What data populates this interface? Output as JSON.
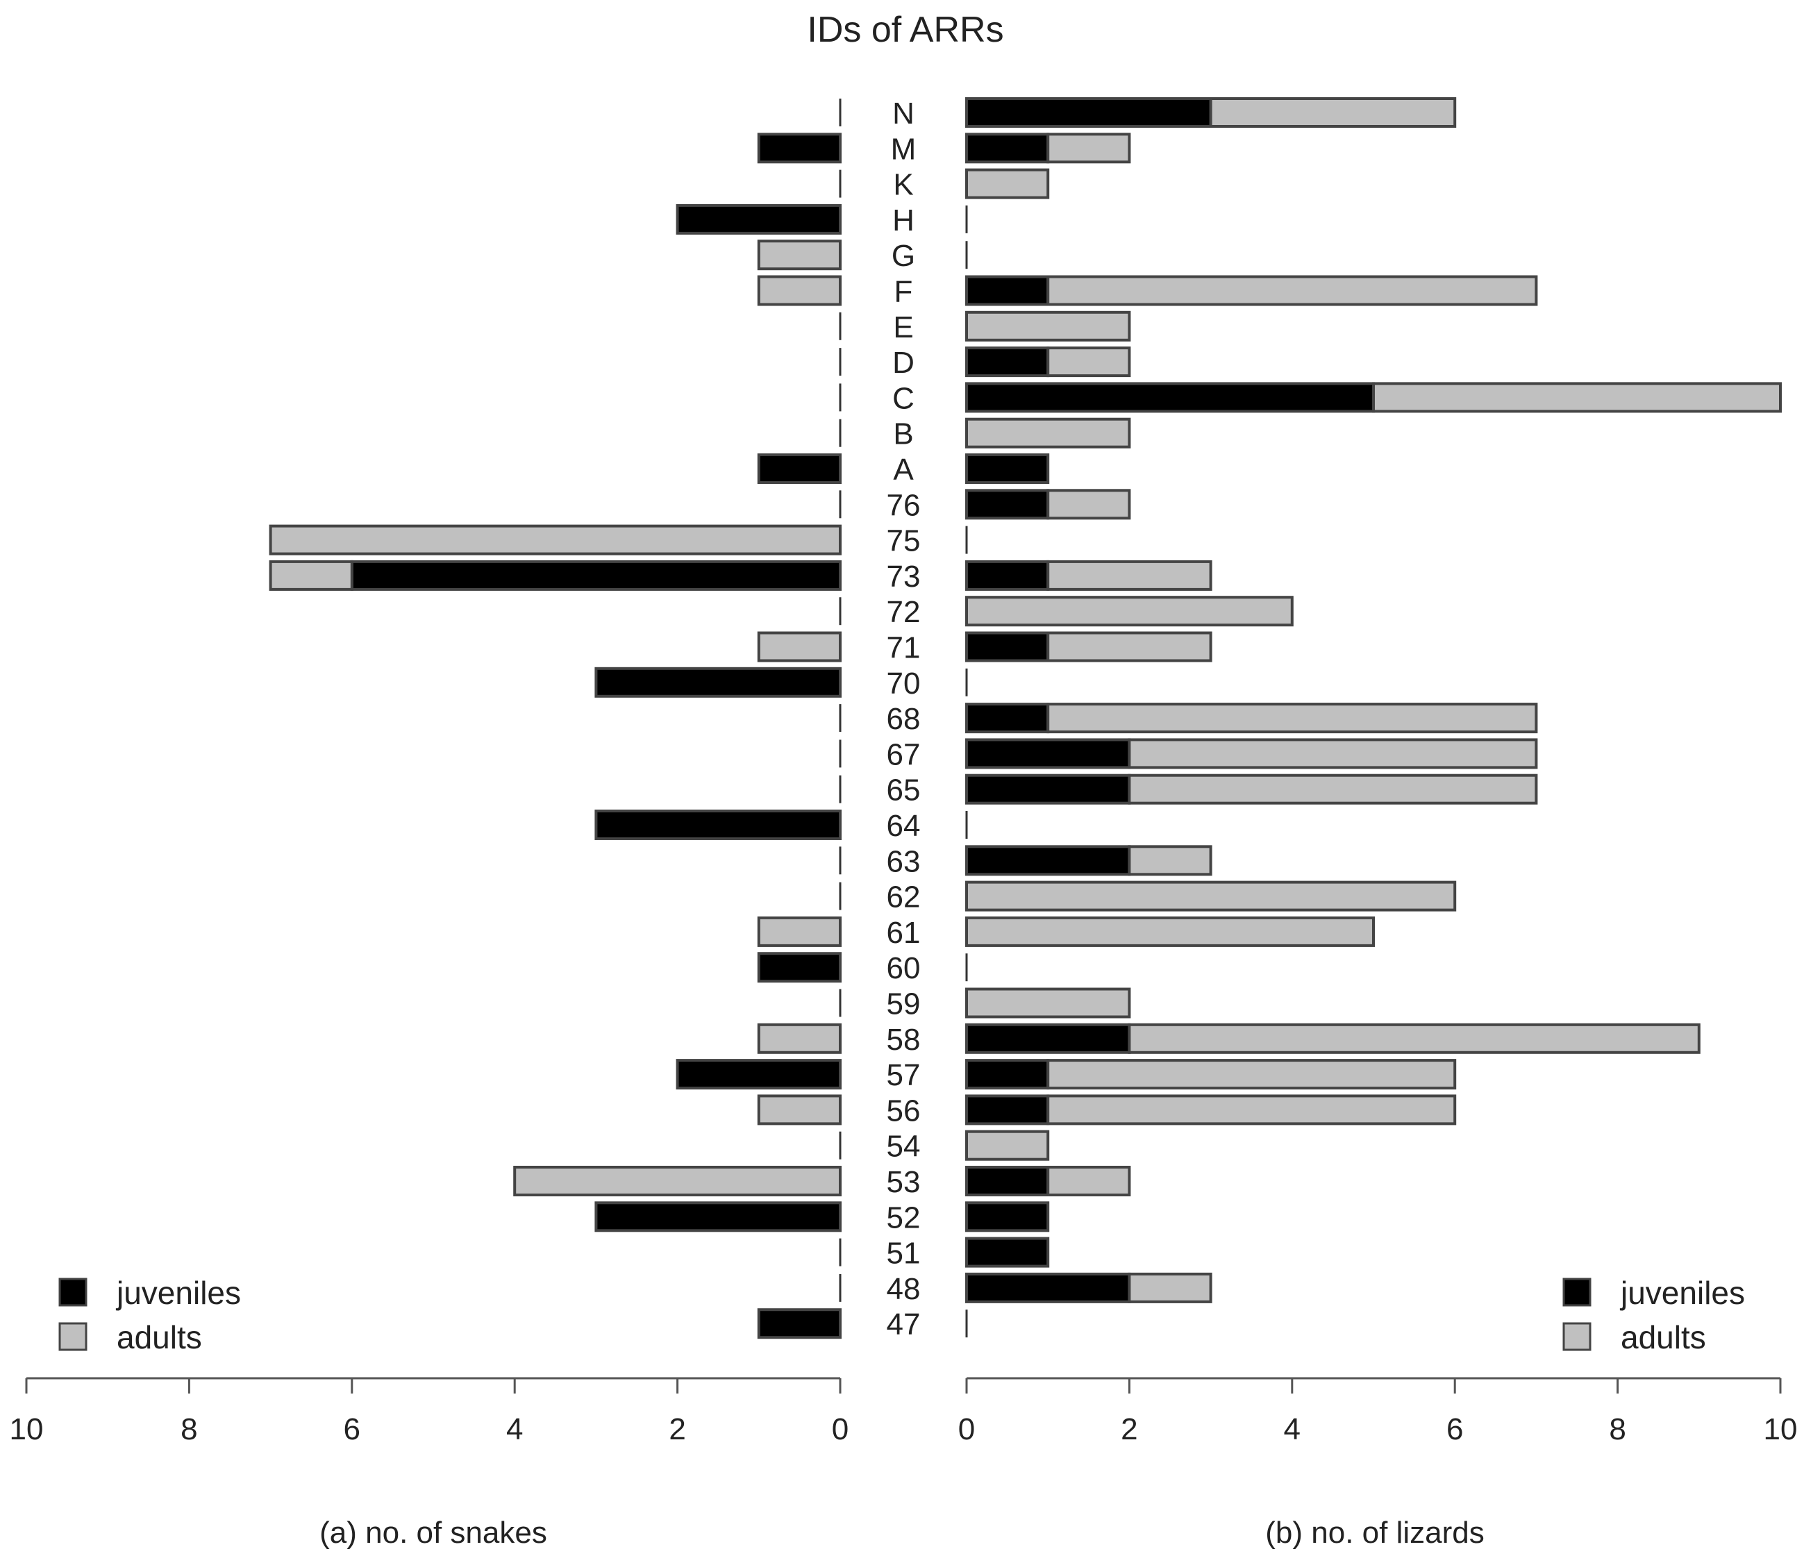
{
  "chart_data": {
    "type": "bar",
    "orientation": "horizontal",
    "stacked": true,
    "title": "IDs of ARRs",
    "categories": [
      "N",
      "M",
      "K",
      "H",
      "G",
      "F",
      "E",
      "D",
      "C",
      "B",
      "A",
      "76",
      "75",
      "73",
      "72",
      "71",
      "70",
      "68",
      "67",
      "65",
      "64",
      "63",
      "62",
      "61",
      "60",
      "59",
      "58",
      "57",
      "56",
      "54",
      "53",
      "52",
      "51",
      "48",
      "47"
    ],
    "colors": {
      "juveniles": "#000000",
      "adults": "#c0c0c0"
    },
    "panels": [
      {
        "name": "snakes",
        "xlabel": "(a) no. of snakes",
        "direction": "leftward",
        "xlim": [
          10,
          0
        ],
        "ticks": [
          10,
          8,
          6,
          4,
          2,
          0
        ],
        "legend": {
          "position": "bottom-left",
          "labels": [
            "juveniles",
            "adults"
          ]
        },
        "series": [
          {
            "name": "juveniles",
            "values": [
              0,
              1,
              0,
              2,
              0,
              0,
              0,
              0,
              0,
              0,
              1,
              0,
              0,
              6,
              0,
              0,
              3,
              0,
              0,
              0,
              3,
              0,
              0,
              0,
              1,
              0,
              0,
              2,
              0,
              0,
              0,
              3,
              0,
              0,
              1
            ]
          },
          {
            "name": "adults",
            "values": [
              0,
              0,
              0,
              0,
              1,
              1,
              0,
              0,
              0,
              0,
              0,
              0,
              7,
              1,
              0,
              1,
              0,
              0,
              0,
              0,
              0,
              0,
              0,
              1,
              0,
              0,
              1,
              0,
              1,
              0,
              4,
              0,
              0,
              0,
              0
            ]
          }
        ]
      },
      {
        "name": "lizards",
        "xlabel": "(b) no. of lizards",
        "direction": "rightward",
        "xlim": [
          0,
          10
        ],
        "ticks": [
          0,
          2,
          4,
          6,
          8,
          10
        ],
        "legend": {
          "position": "bottom-right",
          "labels": [
            "juveniles",
            "adults"
          ]
        },
        "series": [
          {
            "name": "juveniles",
            "values": [
              3,
              1,
              0,
              0,
              0,
              1,
              0,
              1,
              5,
              0,
              1,
              1,
              0,
              1,
              0,
              1,
              0,
              1,
              2,
              2,
              0,
              2,
              0,
              0,
              0,
              0,
              2,
              1,
              1,
              0,
              1,
              1,
              1,
              2,
              0
            ]
          },
          {
            "name": "adults",
            "values": [
              3,
              1,
              1,
              0,
              0,
              6,
              2,
              1,
              5,
              2,
              0,
              1,
              0,
              2,
              4,
              2,
              0,
              6,
              5,
              5,
              0,
              1,
              6,
              5,
              0,
              2,
              7,
              5,
              5,
              1,
              1,
              0,
              0,
              1,
              0
            ]
          }
        ]
      }
    ]
  }
}
